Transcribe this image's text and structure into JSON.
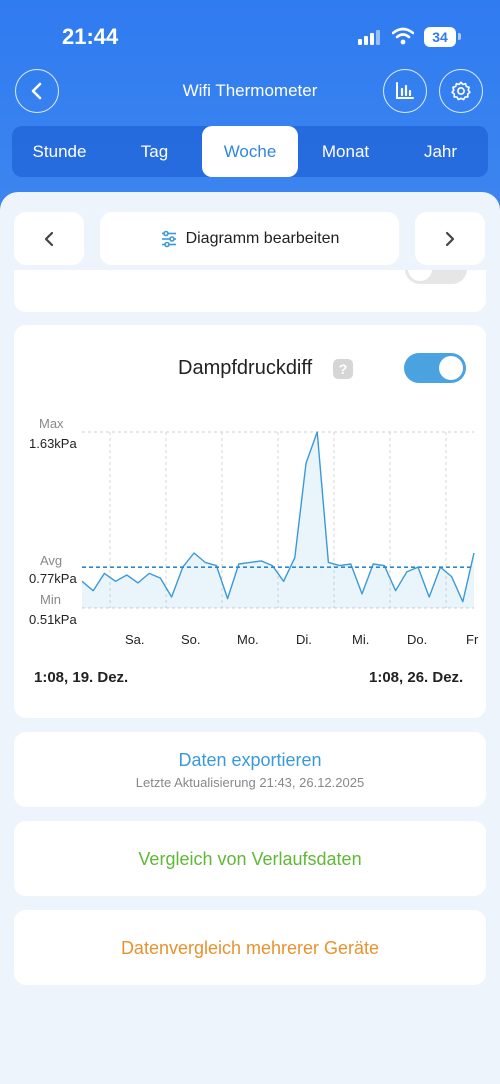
{
  "status_bar": {
    "time": "21:44",
    "battery": "34",
    "icons": [
      "signal-icon",
      "wifi-icon",
      "battery-icon"
    ]
  },
  "header": {
    "title": "Wifi Thermometer",
    "icons": [
      "back-icon",
      "bar-chart-icon",
      "gear-icon"
    ]
  },
  "tabs": [
    {
      "label": "Stunde",
      "active": false
    },
    {
      "label": "Tag",
      "active": false
    },
    {
      "label": "Woche",
      "active": true
    },
    {
      "label": "Monat",
      "active": false
    },
    {
      "label": "Jahr",
      "active": false
    }
  ],
  "toolbar": {
    "edit_label": "Diagramm bearbeiten"
  },
  "colors": {
    "header_blue": "#2f7bf0",
    "accent": "#4aa3e0",
    "green": "#5fb836",
    "orange": "#e8922e"
  },
  "chart_card": {
    "title": "Dampfdruckdiff",
    "help": "?",
    "toggle_on": true,
    "range_start": "1:08,  19. Dez.",
    "range_end": "1:08,  26. Dez."
  },
  "chart_data": {
    "type": "line",
    "y_markers": [
      {
        "label": "Max",
        "value_label": "1.63kPa",
        "value": 1.63
      },
      {
        "label": "Avg",
        "value_label": "0.77kPa",
        "value": 0.77
      },
      {
        "label": "Min",
        "value_label": "0.51kPa",
        "value": 0.51
      }
    ],
    "x_ticks": [
      "Sa.",
      "So.",
      "Mo.",
      "Di.",
      "Mi.",
      "Do.",
      "Fr"
    ],
    "ylim": [
      0.51,
      1.63
    ],
    "avg": 0.77,
    "grid": true,
    "series": [
      {
        "x": [
          0,
          0.2,
          0.4,
          0.6,
          0.8,
          1.0,
          1.2,
          1.4,
          1.6,
          1.8,
          2.0,
          2.2,
          2.4,
          2.6,
          2.8,
          3.0,
          3.2,
          3.4,
          3.6,
          3.8,
          4.0,
          4.2,
          4.4,
          4.6,
          4.8,
          5.0,
          5.2,
          5.4,
          5.6,
          5.8,
          6.0,
          6.2,
          6.4,
          6.6,
          6.8,
          7.0
        ],
        "values": [
          0.68,
          0.62,
          0.73,
          0.68,
          0.72,
          0.67,
          0.73,
          0.7,
          0.58,
          0.77,
          0.86,
          0.8,
          0.78,
          0.57,
          0.79,
          0.8,
          0.81,
          0.78,
          0.68,
          0.83,
          1.43,
          1.63,
          0.8,
          0.78,
          0.79,
          0.6,
          0.79,
          0.78,
          0.62,
          0.74,
          0.77,
          0.58,
          0.77,
          0.71,
          0.55,
          0.86
        ]
      }
    ]
  },
  "actions": {
    "export_label": "Daten exportieren",
    "export_sub": "Letzte Aktualisierung 21:43,  26.12.2025",
    "compare_history": "Vergleich von Verlaufsdaten",
    "compare_devices": "Datenvergleich mehrerer Geräte"
  }
}
